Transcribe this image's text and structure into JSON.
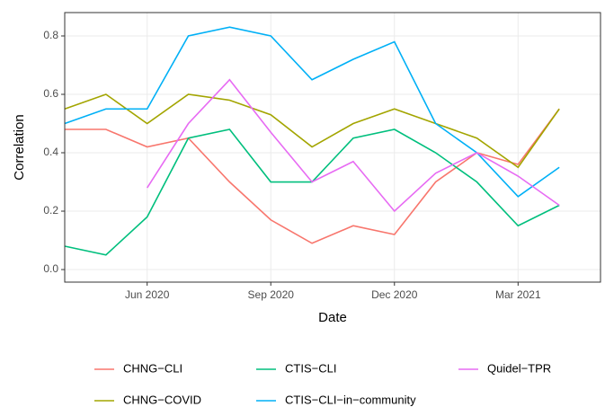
{
  "chart_data": {
    "type": "line",
    "xlabel": "Date",
    "ylabel": "Correlation",
    "x": [
      "2020-04",
      "2020-05",
      "2020-06",
      "2020-07",
      "2020-08",
      "2020-09",
      "2020-10",
      "2020-11",
      "2020-12",
      "2021-01",
      "2021-02",
      "2021-03",
      "2021-04"
    ],
    "series": [
      {
        "name": "CHNG−CLI",
        "color": "#F8766D",
        "values": [
          0.48,
          0.48,
          0.42,
          0.45,
          0.3,
          0.17,
          0.09,
          0.15,
          0.12,
          0.3,
          0.4,
          0.36,
          0.55
        ]
      },
      {
        "name": "CHNG−COVID",
        "color": "#A3A500",
        "values": [
          0.55,
          0.6,
          0.5,
          0.6,
          0.58,
          0.53,
          0.42,
          0.5,
          0.55,
          0.5,
          0.45,
          0.35,
          0.55
        ]
      },
      {
        "name": "CTIS−CLI",
        "color": "#00BF7D",
        "values": [
          0.08,
          0.05,
          0.18,
          0.45,
          0.48,
          0.3,
          0.3,
          0.45,
          0.48,
          0.4,
          0.3,
          0.15,
          0.22
        ]
      },
      {
        "name": "CTIS−CLI−in−community",
        "color": "#00B0F6",
        "values": [
          0.5,
          0.55,
          0.55,
          0.8,
          0.83,
          0.8,
          0.65,
          0.72,
          0.78,
          0.5,
          0.4,
          0.25,
          0.35
        ]
      },
      {
        "name": "Quidel−TPR",
        "color": "#E76BF3",
        "values": [
          null,
          null,
          0.28,
          0.5,
          0.65,
          0.47,
          0.3,
          0.37,
          0.2,
          0.33,
          0.4,
          0.32,
          0.22
        ]
      }
    ],
    "xlim": [
      "2020-04",
      "2021-05"
    ],
    "xticks": [
      {
        "value": "2020-06",
        "label": "Jun 2020"
      },
      {
        "value": "2020-09",
        "label": "Sep 2020"
      },
      {
        "value": "2020-12",
        "label": "Dec 2020"
      },
      {
        "value": "2021-03",
        "label": "Mar 2021"
      }
    ],
    "ylim": [
      -0.043,
      0.88
    ],
    "yticks": [
      {
        "value": 0,
        "label": "0.0"
      },
      0.2,
      0.4,
      0.6,
      0.8
    ],
    "grid": true,
    "legend": "bottom"
  }
}
